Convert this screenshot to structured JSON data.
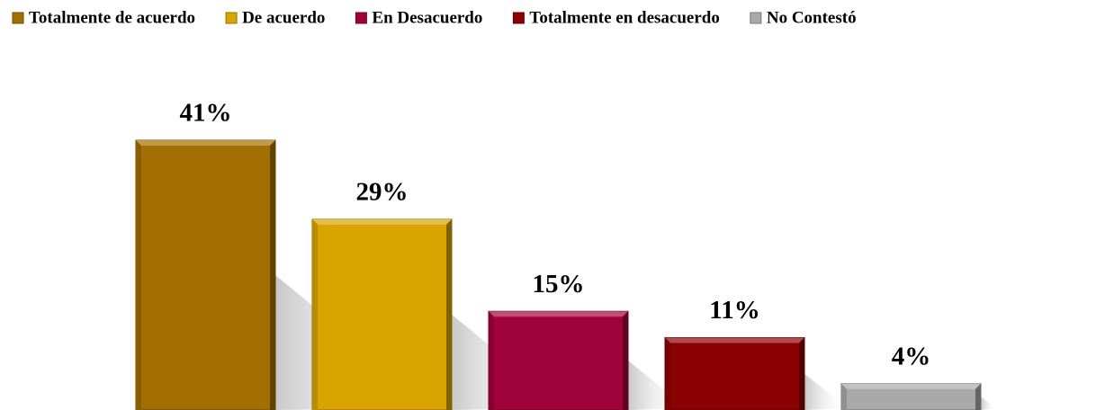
{
  "chart_data": {
    "type": "bar",
    "series": [
      {
        "name": "Totalmente de acuerdo",
        "color": "#a26f00",
        "values": [
          41
        ],
        "value_labels": [
          "41%"
        ]
      },
      {
        "name": "De acuerdo",
        "color": "#d9a300",
        "values": [
          29
        ],
        "value_labels": [
          "29%"
        ]
      },
      {
        "name": "En Desacuerdo",
        "color": "#a0033a",
        "values": [
          15
        ],
        "value_labels": [
          "15%"
        ]
      },
      {
        "name": "Totalmente en desacuerdo",
        "color": "#8b0000",
        "values": [
          11
        ],
        "value_labels": [
          "11%"
        ]
      },
      {
        "name": "No Contestó",
        "color": "#a9a9a9",
        "values": [
          4
        ],
        "value_labels": [
          "4%"
        ]
      }
    ],
    "legend": "top"
  }
}
